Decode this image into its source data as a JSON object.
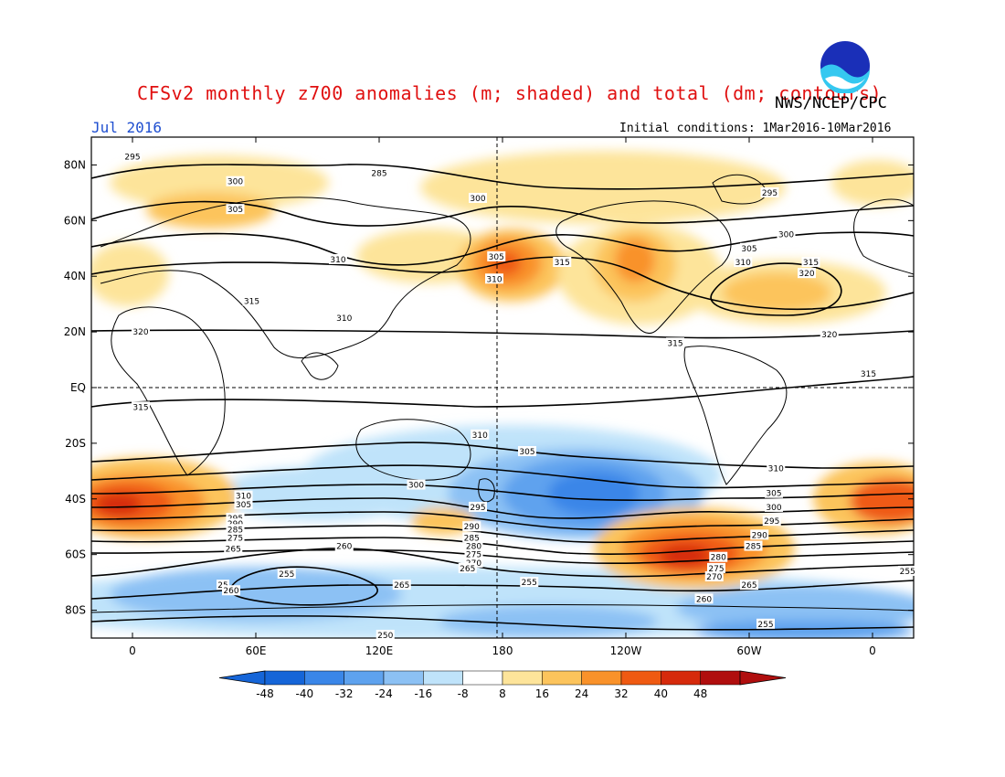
{
  "title": "CFSv2 monthly z700 anomalies (m; shaded) and total (dm; contours)",
  "agency": "NWS/NCEP/CPC",
  "month": "Jul 2016",
  "initial_conditions": "Initial conditions: 1Mar2016-10Mar2016",
  "logo_text": "NOAA",
  "colors": {
    "title": "#e01010",
    "month": "#1f4fd0"
  },
  "map": {
    "lat_labels": [
      "80N",
      "60N",
      "40N",
      "20N",
      "EQ",
      "20S",
      "40S",
      "60S",
      "80S"
    ],
    "lat_values": [
      80,
      60,
      40,
      20,
      0,
      -20,
      -40,
      -60,
      -80
    ],
    "lon_labels": [
      "0",
      "60E",
      "120E",
      "180",
      "120W",
      "60W",
      "0"
    ],
    "lon_values": [
      0,
      60,
      120,
      180,
      240,
      300,
      360
    ]
  },
  "colorbar": {
    "tick_labels": [
      "-48",
      "-40",
      "-32",
      "-24",
      "-16",
      "-8",
      "8",
      "16",
      "24",
      "32",
      "40",
      "48"
    ],
    "colors": [
      "#1565d8",
      "#3a86e8",
      "#5ea2ee",
      "#8cc1f4",
      "#bfe3fa",
      "#ffffff",
      "#fde49a",
      "#fcc45c",
      "#f9922a",
      "#ef5a12",
      "#d62a0c",
      "#b00e0e"
    ]
  },
  "contour_labels": [
    {
      "text": "295",
      "lon": 0,
      "lat": 83
    },
    {
      "text": "285",
      "lon": 120,
      "lat": 77
    },
    {
      "text": "300",
      "lon": 50,
      "lat": 74
    },
    {
      "text": "300",
      "lon": 168,
      "lat": 68
    },
    {
      "text": "305",
      "lon": 50,
      "lat": 64
    },
    {
      "text": "295",
      "lon": 310,
      "lat": 70
    },
    {
      "text": "300",
      "lon": 318,
      "lat": 55
    },
    {
      "text": "305",
      "lon": 300,
      "lat": 50
    },
    {
      "text": "310",
      "lon": 297,
      "lat": 45
    },
    {
      "text": "315",
      "lon": 330,
      "lat": 45
    },
    {
      "text": "320",
      "lon": 328,
      "lat": 41
    },
    {
      "text": "305",
      "lon": 177,
      "lat": 47
    },
    {
      "text": "315",
      "lon": 209,
      "lat": 45
    },
    {
      "text": "310",
      "lon": 176,
      "lat": 39
    },
    {
      "text": "310",
      "lon": 100,
      "lat": 46
    },
    {
      "text": "315",
      "lon": 58,
      "lat": 31
    },
    {
      "text": "310",
      "lon": 103,
      "lat": 25
    },
    {
      "text": "320",
      "lon": 4,
      "lat": 20
    },
    {
      "text": "315",
      "lon": 264,
      "lat": 16
    },
    {
      "text": "320",
      "lon": 339,
      "lat": 19
    },
    {
      "text": "315",
      "lon": 358,
      "lat": 5
    },
    {
      "text": "315",
      "lon": 4,
      "lat": -7
    },
    {
      "text": "310",
      "lon": 169,
      "lat": -17
    },
    {
      "text": "305",
      "lon": 192,
      "lat": -23
    },
    {
      "text": "310",
      "lon": 313,
      "lat": -29
    },
    {
      "text": "300",
      "lon": 138,
      "lat": -35
    },
    {
      "text": "310",
      "lon": 54,
      "lat": -39
    },
    {
      "text": "305",
      "lon": 54,
      "lat": -42
    },
    {
      "text": "295",
      "lon": 50,
      "lat": -47
    },
    {
      "text": "290",
      "lon": 50,
      "lat": -49
    },
    {
      "text": "285",
      "lon": 50,
      "lat": -51
    },
    {
      "text": "275",
      "lon": 50,
      "lat": -54
    },
    {
      "text": "265",
      "lon": 49,
      "lat": -58
    },
    {
      "text": "295",
      "lon": 168,
      "lat": -43
    },
    {
      "text": "290",
      "lon": 165,
      "lat": -50
    },
    {
      "text": "285",
      "lon": 165,
      "lat": -54
    },
    {
      "text": "280",
      "lon": 166,
      "lat": -57
    },
    {
      "text": "275",
      "lon": 166,
      "lat": -60
    },
    {
      "text": "270",
      "lon": 166,
      "lat": -63
    },
    {
      "text": "265",
      "lon": 163,
      "lat": -65
    },
    {
      "text": "260",
      "lon": 103,
      "lat": -57
    },
    {
      "text": "255",
      "lon": 75,
      "lat": -67
    },
    {
      "text": "25",
      "lon": 44,
      "lat": -71
    },
    {
      "text": "260",
      "lon": 48,
      "lat": -73
    },
    {
      "text": "265",
      "lon": 131,
      "lat": -71
    },
    {
      "text": "255",
      "lon": 193,
      "lat": -70
    },
    {
      "text": "305",
      "lon": 312,
      "lat": -38
    },
    {
      "text": "300",
      "lon": 312,
      "lat": -43
    },
    {
      "text": "295",
      "lon": 311,
      "lat": -48
    },
    {
      "text": "290",
      "lon": 305,
      "lat": -53
    },
    {
      "text": "285",
      "lon": 302,
      "lat": -57
    },
    {
      "text": "280",
      "lon": 285,
      "lat": -61
    },
    {
      "text": "275",
      "lon": 284,
      "lat": -65
    },
    {
      "text": "270",
      "lon": 283,
      "lat": -68
    },
    {
      "text": "265",
      "lon": 300,
      "lat": -71
    },
    {
      "text": "260",
      "lon": 278,
      "lat": -76
    },
    {
      "text": "255",
      "lon": 308,
      "lat": -85
    },
    {
      "text": "255",
      "lon": 377,
      "lat": -66
    },
    {
      "text": "250",
      "lon": 123,
      "lat": -89
    }
  ]
}
